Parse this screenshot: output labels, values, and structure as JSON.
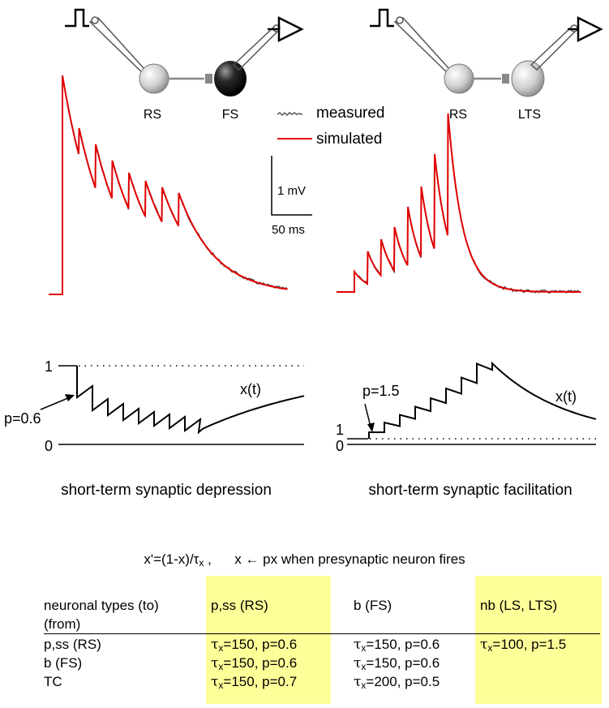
{
  "left_panel": {
    "cell1": "RS",
    "cell2": "FS",
    "caption": "short-term synaptic depression",
    "x_label": "x(t)",
    "p_label": "p=0.6",
    "y_one": "1",
    "y_zero": "0"
  },
  "right_panel": {
    "cell1": "RS",
    "cell2": "LTS",
    "caption": "short-term synaptic facilitation",
    "x_label": "x(t)",
    "p_label": "p=1.5",
    "y_one": "1",
    "y_zero": "0"
  },
  "legend": {
    "measured": "measured",
    "simulated": "simulated",
    "measured_color": "#555555",
    "simulated_color": "#e00000"
  },
  "scale_bar": {
    "voltage": "1 mV",
    "time": "50 ms"
  },
  "equation": {
    "lhs": "x'=(1-x)/τ",
    "sub": "x",
    "sep": " ,     ",
    "update_left": "x",
    "update_right": "px  when presynaptic neuron fires"
  },
  "table": {
    "header_row1": "neuronal types (to)",
    "header_row2": "(from)",
    "columns": [
      "p,ss (RS)",
      "b (FS)",
      "nb (LS, LTS)"
    ],
    "rows": [
      {
        "from": "p,ss (RS)",
        "cells": [
          {
            "tau": "150",
            "p": "0.6"
          },
          {
            "tau": "150",
            "p": "0.6"
          },
          {
            "tau": "100",
            "p": "1.5"
          }
        ]
      },
      {
        "from": "b (FS)",
        "cells": [
          {
            "tau": "150",
            "p": "0.6"
          },
          {
            "tau": "150",
            "p": "0.6"
          },
          null
        ]
      },
      {
        "from": "TC",
        "cells": [
          {
            "tau": "150",
            "p": "0.7"
          },
          {
            "tau": "200",
            "p": "0.5"
          },
          null
        ]
      }
    ],
    "tau_symbol": "τ",
    "tau_sub": "x",
    "highlight_color": "#ffff99"
  }
}
